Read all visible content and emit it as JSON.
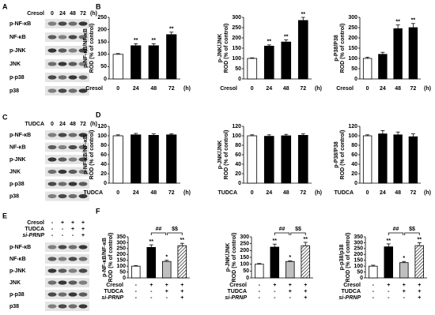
{
  "chart_letters": [
    "B",
    "D",
    "F"
  ],
  "blots": [
    {
      "letter": "A",
      "header": {
        "label": "Cresol",
        "lanes": [
          "0",
          "24",
          "48",
          "72"
        ],
        "unit": "(h)"
      },
      "rows": [
        "p-NF-κB",
        "NF-κB",
        "p-JNK",
        "JNK",
        "p-p38",
        "p38"
      ]
    },
    {
      "letter": "C",
      "header": {
        "label": "TUDCA",
        "lanes": [
          "0",
          "24",
          "48",
          "72"
        ],
        "unit": "(h)"
      },
      "rows": [
        "p-NF-κB",
        "NF-κB",
        "p-JNK",
        "JNK",
        "p-p38",
        "p38"
      ]
    },
    {
      "letter": "E",
      "conditions": [
        {
          "name": "Cresol",
          "signs": [
            "-",
            "+",
            "+",
            "+"
          ]
        },
        {
          "name": "TUDCA",
          "signs": [
            "-",
            "-",
            "+",
            "+"
          ]
        },
        {
          "name": "si-PRNP",
          "signs": [
            "-",
            "-",
            "-",
            "+"
          ],
          "italic": true
        }
      ],
      "rows": [
        "p-NF-κB",
        "NF-κB",
        "p-JNK",
        "JNK",
        "p-p38",
        "p38"
      ]
    }
  ],
  "chart_data": [
    {
      "type": "bar",
      "ylabel": [
        "p-NF-κB/NF-κB",
        "ROD (% of control)"
      ],
      "xlabel": "Cresol",
      "xunit": "(h)",
      "categories": [
        "0",
        "24",
        "48",
        "72"
      ],
      "values": [
        100,
        135,
        135,
        180
      ],
      "errors": [
        3,
        8,
        8,
        10
      ],
      "significance": [
        null,
        "**",
        "**",
        "**"
      ],
      "fills": [
        "#ffffff",
        "#000000",
        "#000000",
        "#000000"
      ],
      "hatched": [
        false,
        false,
        false,
        false
      ],
      "ylim": [
        0,
        250
      ],
      "yticks": [
        0,
        50,
        100,
        150,
        200,
        250
      ]
    },
    {
      "type": "bar",
      "ylabel": [
        "p-JNK/JNK",
        "ROD (% of control)"
      ],
      "xlabel": "Cresol",
      "xunit": "(h)",
      "categories": [
        "0",
        "24",
        "48",
        "72"
      ],
      "values": [
        100,
        160,
        180,
        285
      ],
      "errors": [
        3,
        6,
        10,
        15
      ],
      "significance": [
        null,
        "**",
        "**",
        "**"
      ],
      "fills": [
        "#ffffff",
        "#000000",
        "#000000",
        "#000000"
      ],
      "hatched": [
        false,
        false,
        false,
        false
      ],
      "ylim": [
        0,
        300
      ],
      "yticks": [
        0,
        50,
        100,
        150,
        200,
        250,
        300
      ]
    },
    {
      "type": "bar",
      "ylabel": [
        "p-P38/P38",
        "ROD (% of control)"
      ],
      "xlabel": "Cresol",
      "xunit": "(h)",
      "categories": [
        "0",
        "24",
        "48",
        "72"
      ],
      "values": [
        100,
        120,
        245,
        250
      ],
      "errors": [
        6,
        10,
        18,
        20
      ],
      "significance": [
        null,
        null,
        "**",
        "**"
      ],
      "fills": [
        "#ffffff",
        "#000000",
        "#000000",
        "#000000"
      ],
      "hatched": [
        false,
        false,
        false,
        false
      ],
      "ylim": [
        0,
        300
      ],
      "yticks": [
        0,
        50,
        100,
        150,
        200,
        250,
        300
      ]
    },
    {
      "type": "bar",
      "ylabel": [
        "p-NF-κB/NF-κB",
        "ROD (% of control)"
      ],
      "xlabel": "TUDCA",
      "xunit": "(h)",
      "categories": [
        "0",
        "24",
        "48",
        "72"
      ],
      "values": [
        100,
        102,
        101,
        102
      ],
      "errors": [
        2,
        3,
        3,
        2
      ],
      "fills": [
        "#ffffff",
        "#000000",
        "#000000",
        "#000000"
      ],
      "hatched": [
        false,
        false,
        false,
        false
      ],
      "ylim": [
        0,
        120
      ],
      "yticks": [
        0,
        20,
        40,
        60,
        80,
        100,
        120
      ]
    },
    {
      "type": "bar",
      "ylabel": [
        "p-JNK/JNK",
        "ROD (% of control)"
      ],
      "xlabel": "TUDCA",
      "xunit": "(h)",
      "categories": [
        "0",
        "24",
        "48",
        "72"
      ],
      "values": [
        100,
        99,
        100,
        101
      ],
      "errors": [
        2,
        3,
        3,
        3
      ],
      "fills": [
        "#ffffff",
        "#000000",
        "#000000",
        "#000000"
      ],
      "hatched": [
        false,
        false,
        false,
        false
      ],
      "ylim": [
        0,
        120
      ],
      "yticks": [
        0,
        20,
        40,
        60,
        80,
        100,
        120
      ]
    },
    {
      "type": "bar",
      "ylabel": [
        "p-P38/P38",
        "ROD (% of control)"
      ],
      "xlabel": "TUDCA",
      "xunit": "(h)",
      "categories": [
        "0",
        "24",
        "48",
        "72"
      ],
      "values": [
        100,
        104,
        102,
        98
      ],
      "errors": [
        2,
        7,
        6,
        6
      ],
      "fills": [
        "#ffffff",
        "#000000",
        "#000000",
        "#000000"
      ],
      "hatched": [
        false,
        false,
        false,
        false
      ],
      "ylim": [
        0,
        120
      ],
      "yticks": [
        0,
        20,
        40,
        60,
        80,
        100,
        120
      ]
    },
    {
      "type": "bar",
      "ylabel": [
        "p-NF-κB/NF-κB",
        "ROD (% of control)"
      ],
      "conditions": [
        {
          "name": "Cresol",
          "signs": [
            "-",
            "+",
            "+",
            "+"
          ]
        },
        {
          "name": "TUDCA",
          "signs": [
            "-",
            "-",
            "+",
            "+"
          ]
        },
        {
          "name": "si-PRNP",
          "signs": [
            "-",
            "-",
            "-",
            "+"
          ],
          "italic": true
        }
      ],
      "values": [
        100,
        260,
        140,
        275
      ],
      "errors": [
        5,
        22,
        10,
        20
      ],
      "significance": [
        null,
        "**",
        "*",
        "**"
      ],
      "brackets": [
        {
          "from": 1,
          "to": 2,
          "text": "##"
        },
        {
          "from": 2,
          "to": 3,
          "text": "$$"
        }
      ],
      "fills": [
        "#ffffff",
        "#000000",
        "#bfbfbf",
        "#ffffff"
      ],
      "hatched": [
        false,
        false,
        false,
        true
      ],
      "ylim": [
        0,
        350
      ],
      "yticks": [
        0,
        50,
        100,
        150,
        200,
        250,
        300,
        350
      ]
    },
    {
      "type": "bar",
      "ylabel": [
        "p-JNK/JNK",
        "ROD (% of control)"
      ],
      "conditions": [
        {
          "name": "Cresol",
          "signs": [
            "-",
            "+",
            "+",
            "+"
          ]
        },
        {
          "name": "TUDCA",
          "signs": [
            "-",
            "-",
            "+",
            "+"
          ]
        },
        {
          "name": "si-PRNP",
          "signs": [
            "-",
            "-",
            "-",
            "+"
          ],
          "italic": true
        }
      ],
      "values": [
        100,
        225,
        120,
        235
      ],
      "errors": [
        5,
        22,
        5,
        25
      ],
      "significance": [
        null,
        "**",
        "*",
        "**"
      ],
      "brackets": [
        {
          "from": 1,
          "to": 2,
          "text": "##"
        },
        {
          "from": 2,
          "to": 3,
          "text": "$$"
        }
      ],
      "fills": [
        "#ffffff",
        "#000000",
        "#bfbfbf",
        "#ffffff"
      ],
      "hatched": [
        false,
        false,
        false,
        true
      ],
      "ylim": [
        0,
        300
      ],
      "yticks": [
        0,
        50,
        100,
        150,
        200,
        250,
        300
      ]
    },
    {
      "type": "bar",
      "ylabel": [
        "p-p38/p38",
        "ROD (% of control)"
      ],
      "conditions": [
        {
          "name": "Cresol",
          "signs": [
            "-",
            "+",
            "+",
            "+"
          ]
        },
        {
          "name": "TUDCA",
          "signs": [
            "-",
            "-",
            "+",
            "+"
          ]
        },
        {
          "name": "si-PRNP",
          "signs": [
            "-",
            "-",
            "-",
            "+"
          ],
          "italic": true
        }
      ],
      "values": [
        100,
        265,
        130,
        275
      ],
      "errors": [
        8,
        25,
        10,
        25
      ],
      "significance": [
        null,
        "**",
        "*",
        "**"
      ],
      "brackets": [
        {
          "from": 1,
          "to": 2,
          "text": "##"
        },
        {
          "from": 2,
          "to": 3,
          "text": "$$"
        }
      ],
      "fills": [
        "#ffffff",
        "#000000",
        "#bfbfbf",
        "#ffffff"
      ],
      "hatched": [
        false,
        false,
        false,
        true
      ],
      "ylim": [
        0,
        350
      ],
      "yticks": [
        0,
        50,
        100,
        150,
        200,
        250,
        300,
        350
      ]
    }
  ]
}
